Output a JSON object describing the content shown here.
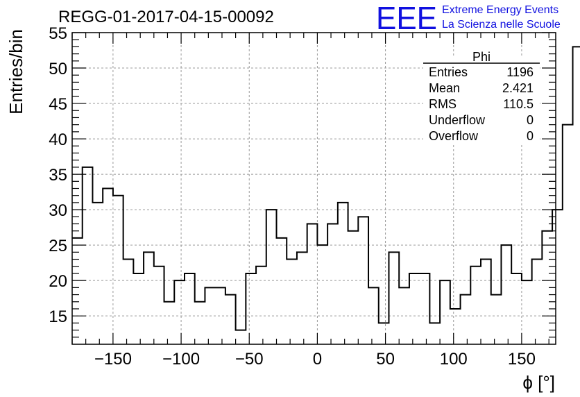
{
  "chart_data": {
    "type": "histogram",
    "title": "REGG-01-2017-04-15-00092",
    "xlabel": "ϕ [°]",
    "ylabel": "Entries/bin",
    "xlim": [
      -180,
      175
    ],
    "ylim": [
      11,
      55
    ],
    "bin_width": 7.5,
    "x_start": -180,
    "x_ticks": [
      -150,
      -100,
      -50,
      0,
      50,
      100,
      150
    ],
    "x_tick_labels": [
      "−150",
      "−100",
      "−50",
      "0",
      "50",
      "100",
      "150"
    ],
    "y_ticks": [
      15,
      20,
      25,
      30,
      35,
      40,
      45,
      50,
      55
    ],
    "grid": true,
    "values": [
      26,
      36,
      31,
      33,
      32,
      23,
      21,
      24,
      22,
      17,
      20,
      21,
      17,
      19,
      19,
      18,
      13,
      21,
      22,
      30,
      26,
      23,
      24,
      28,
      25,
      28,
      31,
      27,
      29,
      19,
      14,
      24,
      19,
      21,
      21,
      14,
      20,
      16,
      18,
      22,
      23,
      18,
      25,
      21,
      20,
      23,
      27,
      30,
      42,
      53
    ]
  },
  "stats": {
    "name": "Phi",
    "rows": [
      {
        "label": "Entries",
        "value": "1196"
      },
      {
        "label": "Mean",
        "value": "2.421"
      },
      {
        "label": "RMS",
        "value": "110.5"
      },
      {
        "label": "Underflow",
        "value": "0"
      },
      {
        "label": "Overflow",
        "value": "0"
      }
    ]
  },
  "logo": {
    "mark": "EEE",
    "line1": "Extreme Energy Events",
    "line2": "La Scienza nelle Scuole",
    "color": "#1010e0"
  }
}
